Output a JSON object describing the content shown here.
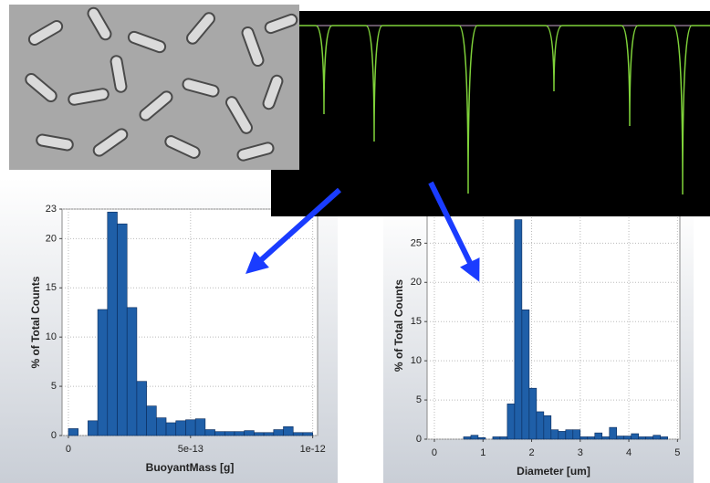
{
  "chart_data": [
    {
      "type": "histogram",
      "xlabel": "BuoyantMass [g]",
      "ylabel": "% of Total Counts",
      "bins": [
        0,
        4e-14,
        8e-14,
        1.2e-13,
        1.6e-13,
        2e-13,
        2.4e-13,
        2.8e-13,
        3.2e-13,
        3.6e-13,
        4e-13,
        4.4e-13,
        4.8e-13,
        5.2e-13,
        5.6e-13,
        6e-13,
        6.4e-13,
        6.8e-13,
        7.2e-13,
        7.6e-13,
        8e-13,
        8.4e-13,
        8.8e-13,
        9.2e-13,
        9.6e-13,
        1e-12
      ],
      "values": [
        0.7,
        0,
        1.5,
        12.8,
        22.7,
        21.5,
        13,
        5.5,
        3,
        1.8,
        1.3,
        1.5,
        1.6,
        1.7,
        0.6,
        0.4,
        0.4,
        0.4,
        0.5,
        0.3,
        0.3,
        0.6,
        0.9,
        0.3,
        0.3
      ],
      "color": "#1f5fa8",
      "xlim": [
        -2.6e-14,
        1.02e-12
      ],
      "xticks": [
        0,
        5e-13,
        1e-12
      ],
      "ylim": [
        0,
        23
      ],
      "yticks": [
        0,
        5,
        10,
        15,
        20,
        23
      ],
      "grid": true
    },
    {
      "type": "histogram",
      "xlabel": "Diameter [um]",
      "ylabel": "% of Total Counts",
      "bins": [
        0,
        0.15,
        0.3,
        0.45,
        0.6,
        0.75,
        0.9,
        1.05,
        1.2,
        1.35,
        1.5,
        1.65,
        1.8,
        1.95,
        2.1,
        2.25,
        2.4,
        2.55,
        2.7,
        2.85,
        3,
        3.15,
        3.3,
        3.45,
        3.6,
        3.75,
        3.9,
        4.05,
        4.2,
        4.35,
        4.5,
        4.65,
        4.8,
        4.95
      ],
      "values": [
        0,
        0,
        0,
        0,
        0.3,
        0.5,
        0.2,
        0,
        0.3,
        0.3,
        4.5,
        28,
        16.5,
        6.5,
        3.5,
        3,
        1.2,
        1,
        1.2,
        1.2,
        0.3,
        0.3,
        0.8,
        0.3,
        1.5,
        0.4,
        0.4,
        0.7,
        0.3,
        0.3,
        0.5,
        0.3,
        0
      ],
      "color": "#1f5fa8",
      "xlim": [
        -0.15,
        5.05
      ],
      "xticks": [
        0,
        1,
        2,
        3,
        4,
        5
      ],
      "ylim": [
        0,
        29
      ],
      "yticks": [
        0,
        5,
        10,
        15,
        20,
        25
      ],
      "grid": true
    }
  ]
}
